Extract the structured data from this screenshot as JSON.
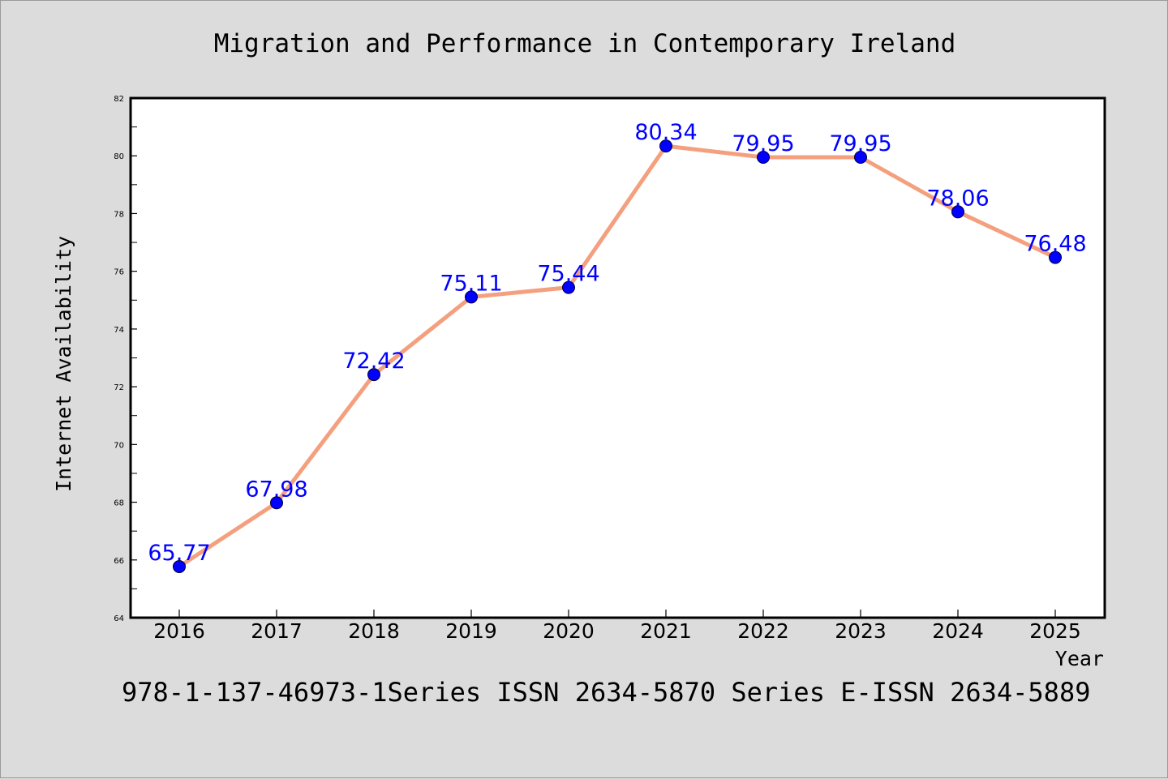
{
  "chart_data": {
    "type": "line",
    "title": "Migration and Performance in Contemporary Ireland",
    "xlabel": "Year",
    "ylabel": "Internet Availability",
    "footer": "978-1-137-46973-1Series ISSN 2634-5870 Series E-ISSN 2634-5889",
    "categories": [
      "2016",
      "2017",
      "2018",
      "2019",
      "2020",
      "2021",
      "2022",
      "2023",
      "2024",
      "2025"
    ],
    "values": [
      65.77,
      67.98,
      72.42,
      75.11,
      75.44,
      80.34,
      79.95,
      79.95,
      78.06,
      76.48
    ],
    "data_labels": [
      "65.77",
      "67.98",
      "72.42",
      "75.11",
      "75.44",
      "80.34",
      "79.95",
      "79.95",
      "78.06",
      "76.48"
    ],
    "ylim": [
      64,
      82
    ],
    "yticks": [
      "64",
      "66",
      "68",
      "70",
      "72",
      "74",
      "76",
      "78",
      "80",
      "82"
    ],
    "grid": false,
    "colors": {
      "line": "#f4a07f",
      "marker": "#0000ff",
      "label": "#0000ff",
      "background": "#dcdcdc",
      "plot_area": "#ffffff"
    }
  }
}
